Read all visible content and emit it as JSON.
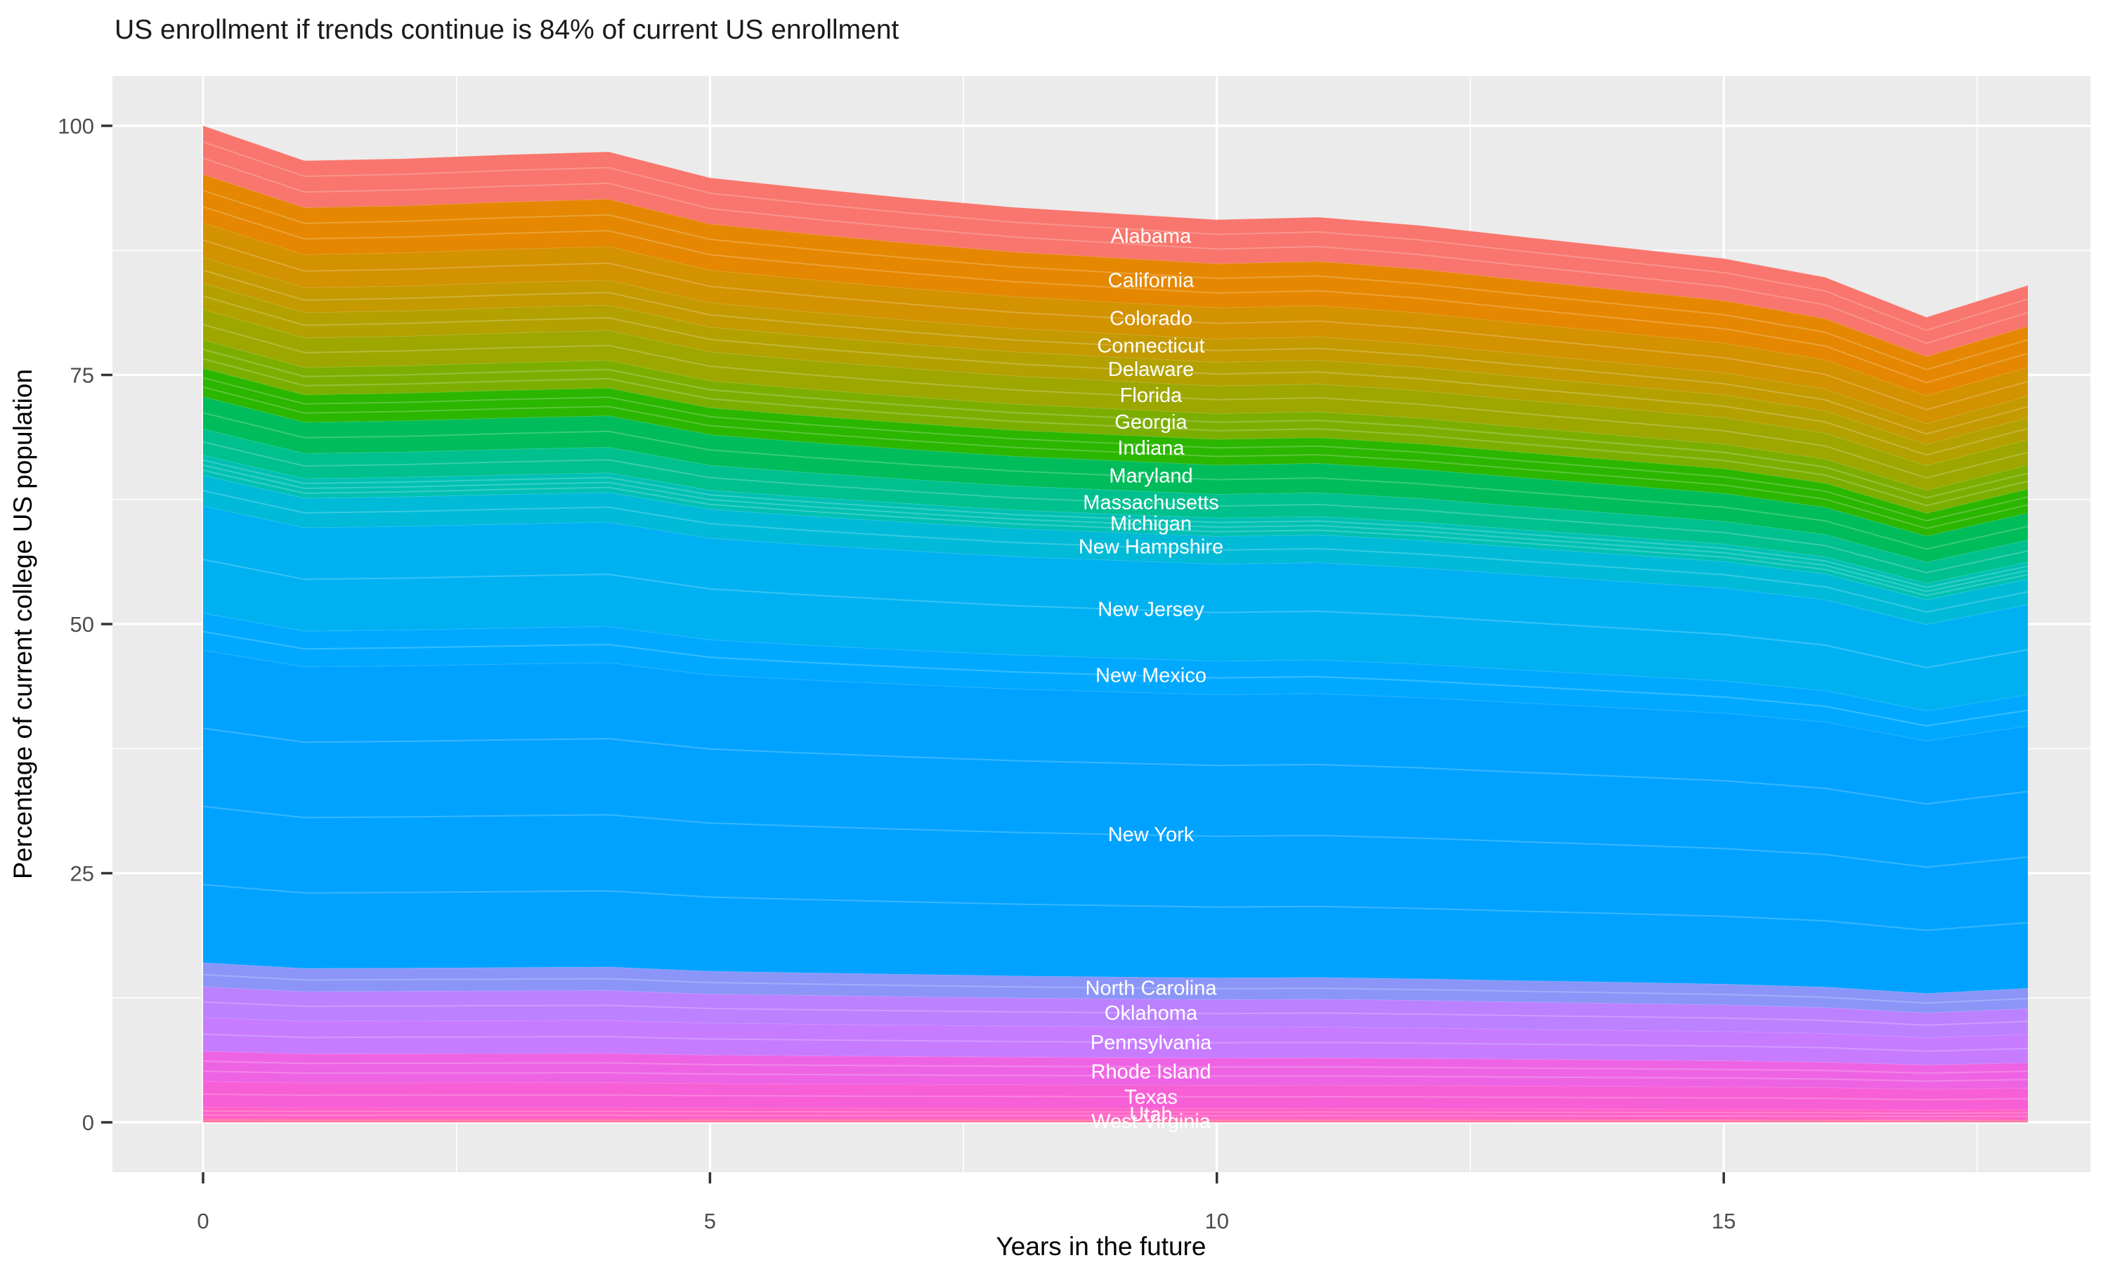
{
  "title": "US enrollment if trends continue is 84% of current US enrollment",
  "x_axis": {
    "label": "Years in the future",
    "range": [
      0,
      18
    ],
    "major_ticks": [
      0,
      5,
      10,
      15
    ],
    "minor_gridlines": [
      2.5,
      7.5,
      12.5,
      17.5
    ]
  },
  "y_axis": {
    "label": "Percentage of current college US population",
    "range": [
      0,
      100
    ],
    "major_ticks": [
      0,
      25,
      50,
      75,
      100
    ],
    "minor_gridlines": [
      12.5,
      37.5,
      62.5,
      87.5
    ]
  },
  "panel": {
    "background": "#EBEBEB",
    "gridline_color": "#FFFFFF",
    "tick_color": "#333333",
    "tick_label_color": "#4D4D4D",
    "band_label_color": "#FFFFFF"
  },
  "chart_data": {
    "type": "area",
    "stacked": true,
    "series_order": "listed top band first (Alabama) to bottom band last (West Virginia)",
    "years": [
      0,
      1,
      2,
      3,
      4,
      5,
      6,
      7,
      8,
      9,
      10,
      11,
      12,
      13,
      14,
      15,
      16,
      17,
      18
    ],
    "totals": [
      100,
      96.5,
      96.7,
      97.1,
      97.4,
      94.8,
      93.7,
      92.7,
      91.8,
      91.2,
      90.6,
      90.8,
      90.0,
      88.9,
      87.8,
      86.7,
      84.8,
      80.8,
      84.0
    ],
    "series": [
      {
        "name": "Alabama",
        "color": "#F8766D",
        "seams": 2,
        "values": [
          4.88,
          4.71,
          4.72,
          4.74,
          4.75,
          4.63,
          4.57,
          4.52,
          4.48,
          4.45,
          4.42,
          4.43,
          4.39,
          4.34,
          4.28,
          4.23,
          4.14,
          3.94,
          4.1
        ]
      },
      {
        "name": "California",
        "color": "#E58700",
        "seams": 2,
        "values": [
          4.88,
          4.71,
          4.72,
          4.74,
          4.75,
          4.63,
          4.57,
          4.52,
          4.48,
          4.45,
          4.42,
          4.43,
          4.39,
          4.34,
          4.28,
          4.23,
          4.14,
          3.94,
          4.1
        ]
      },
      {
        "name": "Colorado",
        "color": "#D39200",
        "seams": 1,
        "values": [
          3.45,
          3.33,
          3.34,
          3.35,
          3.36,
          3.27,
          3.24,
          3.2,
          3.17,
          3.15,
          3.13,
          3.14,
          3.11,
          3.07,
          3.03,
          2.99,
          2.93,
          2.79,
          2.9
        ]
      },
      {
        "name": "Connecticut",
        "color": "#C49A00",
        "seams": 1,
        "values": [
          2.58,
          2.49,
          2.49,
          2.5,
          2.51,
          2.44,
          2.41,
          2.39,
          2.37,
          2.35,
          2.33,
          2.34,
          2.32,
          2.29,
          2.26,
          2.23,
          2.19,
          2.08,
          2.16
        ]
      },
      {
        "name": "Delaware",
        "color": "#B3A100",
        "seams": 1,
        "values": [
          2.63,
          2.54,
          2.54,
          2.56,
          2.56,
          2.49,
          2.47,
          2.44,
          2.42,
          2.4,
          2.38,
          2.39,
          2.37,
          2.34,
          2.31,
          2.28,
          2.23,
          2.13,
          2.21
        ]
      },
      {
        "name": "Florida",
        "color": "#9DA700",
        "seams": 1,
        "values": [
          3.07,
          2.96,
          2.97,
          2.98,
          2.99,
          2.91,
          2.88,
          2.85,
          2.82,
          2.8,
          2.78,
          2.79,
          2.76,
          2.73,
          2.7,
          2.66,
          2.6,
          2.48,
          2.58
        ]
      },
      {
        "name": "Georgia",
        "color": "#7CAE00",
        "seams": 2,
        "values": [
          2.85,
          2.75,
          2.76,
          2.77,
          2.78,
          2.7,
          2.67,
          2.64,
          2.62,
          2.6,
          2.58,
          2.59,
          2.57,
          2.53,
          2.5,
          2.47,
          2.42,
          2.3,
          2.39
        ]
      },
      {
        "name": "Indiana",
        "color": "#2BB600",
        "seams": 2,
        "values": [
          2.85,
          2.75,
          2.76,
          2.77,
          2.78,
          2.7,
          2.67,
          2.64,
          2.62,
          2.6,
          2.58,
          2.59,
          2.57,
          2.53,
          2.5,
          2.47,
          2.42,
          2.3,
          2.39
        ]
      },
      {
        "name": "Maryland",
        "color": "#00BC5A",
        "seams": 1,
        "values": [
          3.23,
          3.12,
          3.13,
          3.14,
          3.15,
          3.07,
          3.03,
          3.0,
          2.97,
          2.95,
          2.93,
          2.94,
          2.91,
          2.88,
          2.84,
          2.8,
          2.74,
          2.61,
          2.72
        ]
      },
      {
        "name": "Massachusetts",
        "color": "#00C08E",
        "seams": 1,
        "values": [
          2.63,
          2.54,
          2.54,
          2.56,
          2.56,
          2.49,
          2.47,
          2.44,
          2.42,
          2.4,
          2.38,
          2.39,
          2.37,
          2.34,
          2.31,
          2.28,
          2.23,
          2.13,
          2.21
        ]
      },
      {
        "name": "Michigan",
        "color": "#00C0B4",
        "seams": 3,
        "values": [
          2.03,
          1.96,
          1.96,
          1.97,
          1.98,
          1.92,
          1.9,
          1.88,
          1.86,
          1.85,
          1.84,
          1.84,
          1.83,
          1.8,
          1.78,
          1.76,
          1.72,
          1.64,
          1.7
        ]
      },
      {
        "name": "New Hampshire",
        "color": "#00BAD8",
        "seams": 1,
        "values": [
          3.07,
          2.96,
          2.97,
          2.98,
          2.99,
          2.91,
          2.88,
          2.85,
          2.82,
          2.8,
          2.78,
          2.79,
          2.76,
          2.73,
          2.7,
          2.66,
          2.6,
          2.48,
          2.58
        ]
      },
      {
        "name": "New Jersey",
        "color": "#00B1F2",
        "seams": 1,
        "values": [
          10.75,
          10.37,
          10.39,
          10.43,
          10.47,
          10.19,
          10.07,
          9.96,
          9.86,
          9.8,
          9.74,
          9.76,
          9.67,
          9.55,
          9.43,
          9.32,
          9.11,
          8.68,
          9.03
        ]
      },
      {
        "name": "New Mexico",
        "color": "#00A9FF",
        "seams": 1,
        "values": [
          3.73,
          3.6,
          3.61,
          3.62,
          3.63,
          3.53,
          3.49,
          3.46,
          3.42,
          3.4,
          3.38,
          3.39,
          3.36,
          3.31,
          3.27,
          3.23,
          3.16,
          3.01,
          3.13
        ]
      },
      {
        "name": "New York",
        "color": "#00A2FF",
        "seams": 3,
        "values": [
          31.36,
          30.26,
          30.32,
          30.45,
          30.54,
          29.73,
          29.38,
          29.07,
          28.79,
          28.6,
          28.41,
          28.47,
          28.22,
          27.88,
          27.53,
          27.19,
          26.59,
          25.34,
          26.34
        ]
      },
      {
        "name": "North Carolina",
        "color": "#8B95F8",
        "seams": 1,
        "values": [
          2.41,
          2.33,
          2.33,
          2.34,
          2.35,
          2.29,
          2.26,
          2.24,
          2.21,
          2.2,
          2.19,
          2.19,
          2.17,
          2.14,
          2.12,
          2.09,
          2.05,
          1.95,
          2.03
        ]
      },
      {
        "name": "Oklahoma",
        "color": "#BC81FF",
        "seams": 1,
        "values": [
          3.07,
          2.96,
          2.97,
          2.98,
          2.99,
          2.91,
          2.88,
          2.85,
          2.82,
          2.8,
          2.78,
          2.79,
          2.76,
          2.73,
          2.7,
          2.66,
          2.6,
          2.48,
          2.58
        ]
      },
      {
        "name": "Pennsylvania",
        "color": "#C77CFF",
        "seams": 1,
        "values": [
          3.4,
          3.28,
          3.29,
          3.3,
          3.31,
          3.22,
          3.18,
          3.15,
          3.12,
          3.1,
          3.08,
          3.09,
          3.06,
          3.02,
          2.98,
          2.95,
          2.88,
          2.75,
          2.86
        ]
      },
      {
        "name": "Rhode Island",
        "color": "#EE63E3",
        "seams": 2,
        "values": [
          3.02,
          2.91,
          2.92,
          2.93,
          2.94,
          2.86,
          2.83,
          2.8,
          2.77,
          2.75,
          2.73,
          2.74,
          2.71,
          2.68,
          2.65,
          2.61,
          2.56,
          2.44,
          2.53
        ]
      },
      {
        "name": "Texas",
        "color": "#F75FD6",
        "seams": 1,
        "values": [
          2.58,
          2.49,
          2.49,
          2.5,
          2.51,
          2.44,
          2.41,
          2.39,
          2.37,
          2.35,
          2.33,
          2.34,
          2.32,
          2.29,
          2.26,
          2.23,
          2.19,
          2.08,
          2.16
        ]
      },
      {
        "name": "Utah",
        "color": "#FF61C7",
        "seams": 2,
        "values": [
          1.21,
          1.16,
          1.17,
          1.17,
          1.17,
          1.14,
          1.13,
          1.12,
          1.11,
          1.1,
          1.09,
          1.1,
          1.09,
          1.07,
          1.06,
          1.05,
          1.02,
          0.97,
          1.01
        ]
      },
      {
        "name": "West Virginia",
        "color": "#FF6698",
        "seams": 1,
        "values": [
          0.33,
          0.32,
          0.32,
          0.32,
          0.32,
          0.31,
          0.31,
          0.3,
          0.3,
          0.3,
          0.3,
          0.3,
          0.3,
          0.29,
          0.29,
          0.29,
          0.28,
          0.27,
          0.28
        ]
      }
    ]
  }
}
